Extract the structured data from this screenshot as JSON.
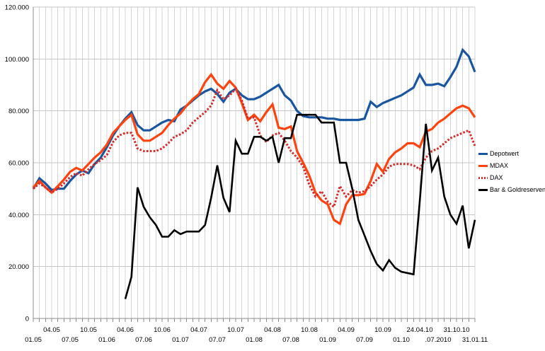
{
  "page": {
    "background": "#FFFFFF"
  },
  "chart_data": {
    "type": "line",
    "title": "",
    "n_points": 73,
    "grid": {
      "horizontal": true,
      "vertical": true,
      "h_color": "#C6C6C6",
      "v_color": "#D4D4D4",
      "axis_color": "#8C8C8C"
    },
    "y_axis": {
      "min": 0,
      "max": 120000,
      "step": 20000,
      "tick_labels": [
        "0",
        "20.000",
        "40.000",
        "60.000",
        "80.000",
        "100.000",
        "120.000"
      ]
    },
    "x_axis": {
      "tick_labels": [
        {
          "i": 0,
          "label": "01.05",
          "row": "lower"
        },
        {
          "i": 3,
          "label": "04.05",
          "row": "upper"
        },
        {
          "i": 6,
          "label": "07.05",
          "row": "lower"
        },
        {
          "i": 9,
          "label": "10.05",
          "row": "upper"
        },
        {
          "i": 12,
          "label": "01.06",
          "row": "lower"
        },
        {
          "i": 15,
          "label": "04.06",
          "row": "upper"
        },
        {
          "i": 18,
          "label": "07.06",
          "row": "lower"
        },
        {
          "i": 21,
          "label": "10.06",
          "row": "upper"
        },
        {
          "i": 24,
          "label": "01.07",
          "row": "lower"
        },
        {
          "i": 27,
          "label": "04.07",
          "row": "upper"
        },
        {
          "i": 30,
          "label": "07.07",
          "row": "lower"
        },
        {
          "i": 33,
          "label": "10.07",
          "row": "upper"
        },
        {
          "i": 36,
          "label": "01.08",
          "row": "lower"
        },
        {
          "i": 39,
          "label": "04.08",
          "row": "upper"
        },
        {
          "i": 42,
          "label": "07.08",
          "row": "lower"
        },
        {
          "i": 45,
          "label": "10.08",
          "row": "upper"
        },
        {
          "i": 48,
          "label": "01.09",
          "row": "lower"
        },
        {
          "i": 51,
          "label": "04.09",
          "row": "upper"
        },
        {
          "i": 54,
          "label": "07.09",
          "row": "lower"
        },
        {
          "i": 57,
          "label": "10.09",
          "row": "upper"
        },
        {
          "i": 60,
          "label": "01.10",
          "row": "lower"
        },
        {
          "i": 63,
          "label": "24.04.10",
          "row": "upper"
        },
        {
          "i": 66,
          "label": ".07.2010",
          "row": "lower"
        },
        {
          "i": 69,
          "label": "31.10.10",
          "row": "upper"
        },
        {
          "i": 72,
          "label": "31.01.11",
          "row": "lower"
        }
      ]
    },
    "legend": {
      "position": "right"
    },
    "series": [
      {
        "name": "Depotwert",
        "color": "#1A56A0",
        "style": "solid",
        "width": 3.2,
        "values": [
          50000,
          54000,
          52000,
          49500,
          50000,
          50000,
          53000,
          55500,
          57000,
          56000,
          59500,
          62000,
          66000,
          70500,
          74000,
          77000,
          79500,
          74500,
          72500,
          72500,
          74000,
          75500,
          76500,
          76000,
          80500,
          82000,
          84000,
          86000,
          87500,
          88500,
          86500,
          83500,
          87000,
          88500,
          86000,
          84500,
          84500,
          85500,
          87000,
          88500,
          90000,
          86000,
          84000,
          80000,
          78000,
          77500,
          77500,
          77500,
          77000,
          77000,
          76500,
          76500,
          76500,
          76500,
          77000,
          83500,
          81500,
          83000,
          84000,
          85000,
          86000,
          87500,
          89000,
          94000,
          90000,
          90000,
          90500,
          89500,
          93000,
          97000,
          103500,
          101000,
          95000
        ]
      },
      {
        "name": "MDAX",
        "color": "#FF430F",
        "style": "solid",
        "width": 3.2,
        "values": [
          50500,
          53000,
          50500,
          48500,
          51000,
          53500,
          56500,
          58000,
          57000,
          59500,
          62000,
          64000,
          67000,
          71500,
          74000,
          76500,
          78500,
          71000,
          68500,
          68500,
          70000,
          71500,
          74500,
          77000,
          79000,
          82000,
          84500,
          86500,
          91000,
          94000,
          90500,
          88500,
          91500,
          89000,
          83000,
          76500,
          78500,
          76000,
          79500,
          82500,
          73500,
          73000,
          74000,
          64500,
          60000,
          55000,
          48500,
          45500,
          44000,
          38000,
          36500,
          44000,
          47500,
          47500,
          48000,
          53000,
          59500,
          56500,
          61500,
          64000,
          65500,
          67500,
          67500,
          66000,
          72000,
          73000,
          75500,
          77000,
          79000,
          81000,
          82000,
          81000,
          77500
        ]
      },
      {
        "name": "DAX",
        "color": "#D62B2B",
        "style": "dotted",
        "width": 3,
        "values": [
          50000,
          52000,
          50500,
          48500,
          50000,
          52000,
          54500,
          56000,
          55000,
          57500,
          59500,
          61000,
          63000,
          68000,
          70500,
          71500,
          71500,
          65500,
          64500,
          64500,
          64500,
          65500,
          67500,
          70000,
          71000,
          72500,
          75500,
          77500,
          79500,
          82000,
          88000,
          84500,
          86000,
          88500,
          84000,
          77000,
          77500,
          70500,
          68000,
          70500,
          71500,
          68500,
          64500,
          62000,
          58500,
          51500,
          47000,
          49000,
          45000,
          43000,
          51000,
          47000,
          49500,
          48500,
          49000,
          51000,
          53500,
          55500,
          58500,
          59500,
          59500,
          59500,
          59000,
          57500,
          62000,
          64500,
          65500,
          67500,
          69500,
          70500,
          71500,
          72500,
          66500
        ]
      },
      {
        "name": "Bar & Goldreserven",
        "color": "#000000",
        "style": "solid",
        "width": 2.6,
        "values": [
          null,
          null,
          null,
          null,
          null,
          null,
          null,
          null,
          null,
          null,
          null,
          null,
          null,
          null,
          null,
          7500,
          16000,
          50500,
          43000,
          39000,
          36000,
          31500,
          31500,
          34000,
          32500,
          33500,
          33500,
          33500,
          36000,
          46500,
          59000,
          46500,
          41000,
          68500,
          63500,
          63500,
          70000,
          70000,
          68500,
          70000,
          60000,
          69500,
          69500,
          78500,
          78500,
          78500,
          78500,
          75500,
          75500,
          75500,
          60000,
          60000,
          50000,
          38000,
          32000,
          26000,
          21000,
          18500,
          22500,
          19500,
          18000,
          17500,
          17000,
          45000,
          75000,
          57000,
          62000,
          47000,
          40000,
          36500,
          43500,
          27000,
          38000
        ]
      }
    ]
  }
}
